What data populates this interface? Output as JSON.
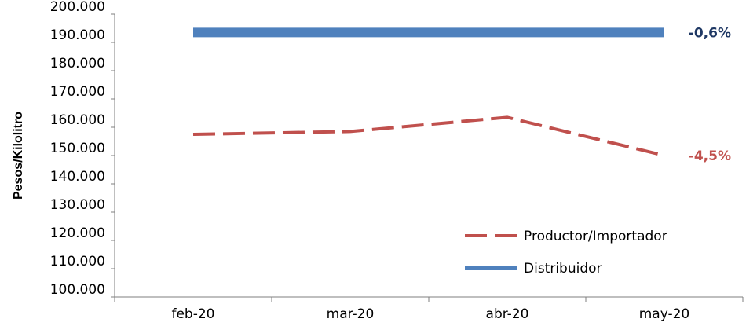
{
  "chart_data": {
    "type": "line",
    "categories": [
      "feb-20",
      "mar-20",
      "abr-20",
      "may-20"
    ],
    "ylabel": "Pesos/Kilolitro",
    "ylim": [
      100000,
      200000
    ],
    "yticks": [
      {
        "value": 100000,
        "label": "100.000"
      },
      {
        "value": 110000,
        "label": "110.000"
      },
      {
        "value": 120000,
        "label": "120.000"
      },
      {
        "value": 130000,
        "label": "130.000"
      },
      {
        "value": 140000,
        "label": "140.000"
      },
      {
        "value": 150000,
        "label": "150.000"
      },
      {
        "value": 160000,
        "label": "160.000"
      },
      {
        "value": 170000,
        "label": "170.000"
      },
      {
        "value": 180000,
        "label": "180.000"
      },
      {
        "value": 190000,
        "label": "190.000"
      },
      {
        "value": 200000,
        "label": "200.000"
      }
    ],
    "series": [
      {
        "name": "Productor/Importador",
        "values": [
          157500,
          158500,
          163500,
          150000
        ],
        "color": "#c0504d",
        "style": "dashed",
        "end_label": "-4,5%"
      },
      {
        "name": "Distribuidor",
        "values": [
          193500,
          193500,
          193500,
          193500
        ],
        "color": "#4f81bd",
        "style": "solid",
        "end_label": "-0,6%",
        "end_label_color": "#1f3864"
      }
    ],
    "grid": false,
    "legend_position": "bottom-right"
  }
}
